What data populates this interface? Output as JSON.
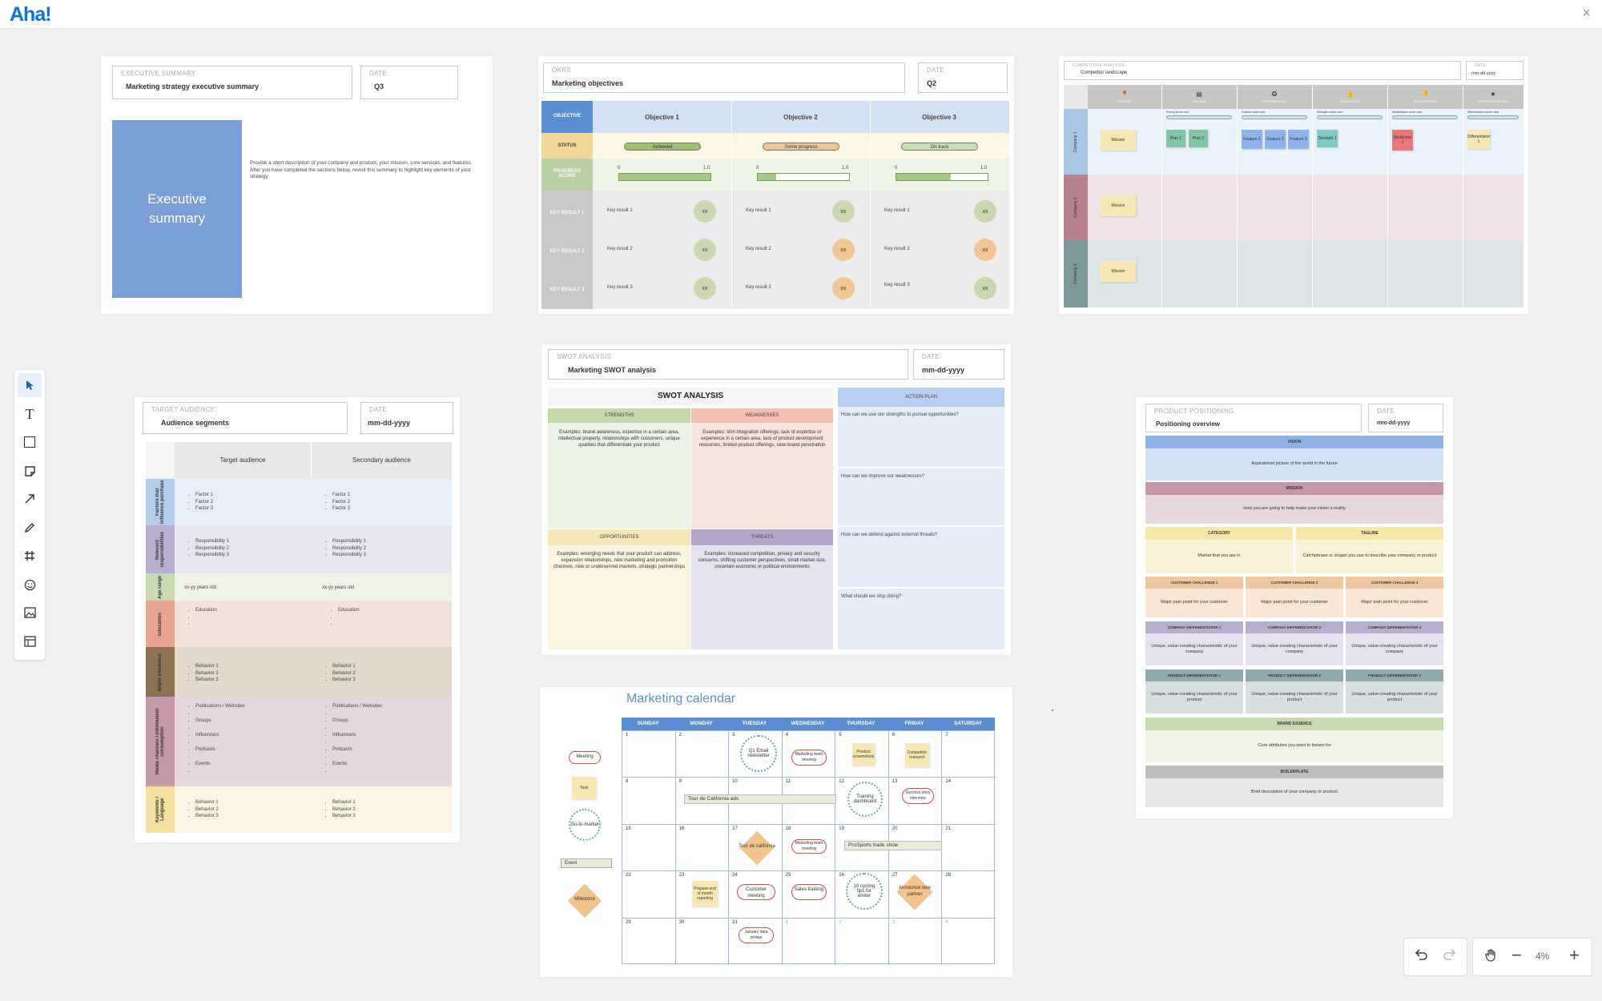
{
  "app": {
    "logo": "Aha!",
    "close": "×"
  },
  "exec": {
    "hdr_small": "EXECUTIVE SUMMARY",
    "hdr_title": "Marketing strategy executive summary",
    "date_small": "DATE",
    "date_value": "Q3",
    "block": "Executive summary",
    "text": "Provide a short description of your company and product, your mission, core services, and features. After you have completed the sections below, revisit this summary to highlight key elements of your strategy."
  },
  "okr": {
    "hdr_small": "OKRs",
    "hdr_title": "Marketing objectives",
    "date_small": "DATE",
    "date_value": "Q2",
    "row_objective": "OBJECTIVE",
    "row_status": "STATUS",
    "row_progress": "PROGRESS SCORE",
    "row_kr1": "KEY RESULT 1",
    "row_kr2": "KEY RESULT 2",
    "row_kr3": "KEY RESULT 3",
    "scale_min": "0",
    "scale_max": "1.0",
    "objectives": [
      "Objective 1",
      "Objective 2",
      "Objective 3"
    ],
    "statuses": [
      "Achieved",
      "Some progress",
      "On track"
    ],
    "kr_labels": [
      "Key result 1",
      "Key result 2",
      "Key result 3"
    ],
    "score": "xx"
  },
  "comp": {
    "hdr_small": "COMPETITIVE ANALYSIS",
    "hdr_title": "Competitor landscape",
    "date_small": "DATE",
    "date_value": "mm-dd-yyyy",
    "cols": [
      "MISSION",
      "PRICING",
      "TOP FEATURES",
      "STRENGTHS",
      "WEAKNESSES",
      "DIFFERENTIATORS"
    ],
    "rows": [
      "Company 1",
      "Company 2",
      "Company 3"
    ],
    "sub": [
      "Pricing score card",
      "Feature score card",
      "Strengths score card",
      "Weaknesses score card",
      "Differentiators score card"
    ],
    "mission": "Mission",
    "plan1": "Plan 1",
    "plan2": "Plan 2",
    "f1": "Feature 1",
    "f2": "Feature 2",
    "f3": "Feature 3",
    "strength": "Strength 1",
    "weak": "Weakness 1",
    "diff": "Differentiator 1"
  },
  "swot": {
    "hdr_small": "SWOT ANALYSIS",
    "hdr_title": "Marketing SWOT analysis",
    "date_small": "DATE",
    "date_value": "mm-dd-yyyy",
    "title": "SWOT ANALYSIS",
    "strengths": "STRENGTHS",
    "weaknesses": "WEAKNESSES",
    "opportunities": "OPPORTUNITIES",
    "threats": "THREATS",
    "action": "ACTION PLAN",
    "s_text": "Examples: brand awareness, expertise in a certain area, intellectual property, relationships with customers, unique qualities that differentiate your product",
    "w_text": "Examples: slim integration offerings, lack of expertise or experience in a certain area, lack of product development resources, limited product offerings, slow brand penetration",
    "o_text": "Examples: emerging needs that your product can address, expansion relationships, new marketing and promotion channels, new or underserved markets, strategic partnerships",
    "t_text": "Examples: increased competition, privacy and security concerns, shifting customer perspectives, small market size, uncertain economic or political environments",
    "q1": "How can we use our strengths to pursue opportunities?",
    "q2": "How can we improve our weaknesses?",
    "q3": "How can we defend against external threats?",
    "q4": "What should we stop doing?"
  },
  "aud": {
    "hdr_small": "TARGET AUDIENCE",
    "hdr_title": "Audience segments",
    "date_small": "DATE",
    "date_value": "mm-dd-yyyy",
    "col1": "Target audience",
    "col2": "Secondary audience",
    "rows": [
      "Factors that influence purchase",
      "Relevant responsibilities",
      "Age range",
      "Education",
      "Buyer behaviors",
      "Media channels / information consumption",
      "Keywords / Language"
    ],
    "factors": [
      "Factor 1",
      "Factor 2",
      "Factor 3"
    ],
    "resp": [
      "Responsibility 1",
      "Responsibility 2",
      "Responsibility 3"
    ],
    "age": "xx-yy years old",
    "edu": "Education",
    "beh": [
      "Behavior 1",
      "Behavior 2",
      "Behavior 3"
    ],
    "media": [
      "Publications / Websites",
      "Groups",
      "Influencers",
      "Podcasts",
      "Events"
    ]
  },
  "pos": {
    "hdr_small": "PRODUCT POSITIONING",
    "hdr_title": "Positioning overview",
    "date_small": "DATE",
    "date_value": "mm-dd-yyyy",
    "vision": "VISION",
    "vision_t": "Aspirational picture of the world in the future",
    "mission": "MISSION",
    "mission_t": "How you are going to help make your vision a reality",
    "category": "CATEGORY",
    "category_t": "Market that you are in",
    "tagline": "TAGLINE",
    "tagline_t": "Catchphrase or slogan you use to describe your company or product",
    "cc": [
      "CUSTOMER CHALLENGE 1",
      "CUSTOMER CHALLENGE 2",
      "CUSTOMER CHALLENGE 3"
    ],
    "cc_t": "Major pain point for your customer",
    "cd": [
      "COMPANY DIFFERENTIATOR 1",
      "COMPANY DIFFERENTIATOR 2",
      "COMPANY DIFFERENTIATOR 3"
    ],
    "cd_t": "Unique, value-creating characteristic of your company",
    "pd": [
      "PRODUCT DIFFERENTIATOR 1",
      "PRODUCT DIFFERENTIATOR 2",
      "PRODUCT DIFFERENTIATOR 3"
    ],
    "pd_t": "Unique, value-creating characteristic of your product",
    "essence": "BRAND ESSENCE",
    "essence_t": "Core attributes you want to known for",
    "boiler": "BOILERPLATE",
    "boiler_t": "Brief description of your company or product"
  },
  "cal": {
    "title": "Marketing calendar",
    "days": [
      "SUNDAY",
      "MONDAY",
      "TUESDAY",
      "WEDNESDAY",
      "THURSDAY",
      "FRIDAY",
      "SATURDAY"
    ],
    "weeks": [
      [
        "1",
        "2",
        "3",
        "4",
        "5",
        "6",
        "7"
      ],
      [
        "8",
        "9",
        "10",
        "11",
        "12",
        "13",
        "14"
      ],
      [
        "15",
        "16",
        "17",
        "18",
        "19",
        "20",
        "21"
      ],
      [
        "22",
        "23",
        "24",
        "25",
        "26",
        "27",
        "28"
      ],
      [
        "29",
        "30",
        "31",
        "1",
        "2",
        "3",
        "4"
      ]
    ],
    "legend": {
      "meeting": "Meeting",
      "task": "Task",
      "gtm": "Go-to-market",
      "event": "Event",
      "milestone": "Milestone"
    },
    "items": {
      "q1email": "Q1 Email newsletter",
      "mktmeet": "Marketing team meeting",
      "prodss": "Product screenshots",
      "compres": "Competitor research",
      "tourads": "Tour de California ads",
      "training": "Training dashboard",
      "success": "Success story interview",
      "tourdec": "Tour de california",
      "mktmeet2": "Marketing team meeting",
      "prosports": "ProSports trade show",
      "prepare": "Prepare end of month reporting",
      "custmeet": "Customer meeting",
      "sales": "Sales training",
      "cycling": "10 cycling tips for winter",
      "announce": "Announce new partner",
      "jandata": "January data review"
    }
  },
  "bottom": {
    "zoom": "4%"
  }
}
